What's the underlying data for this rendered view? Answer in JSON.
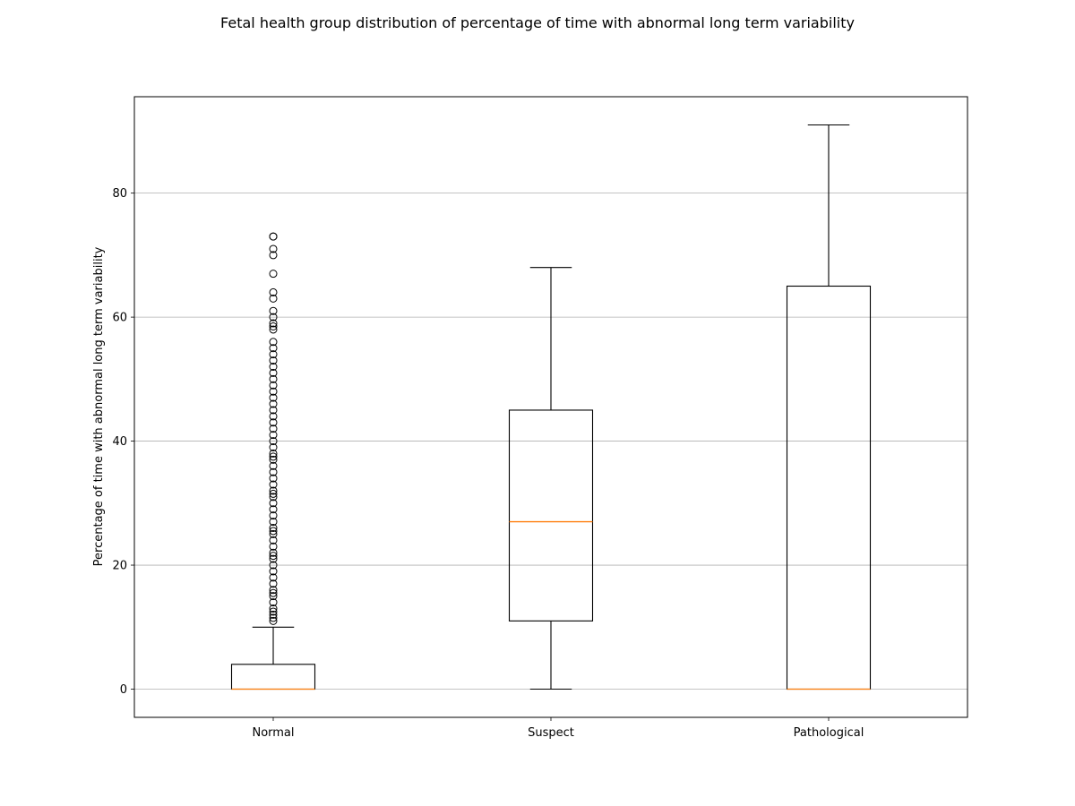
{
  "chart_data": {
    "type": "boxplot",
    "title": "Fetal health group distribution of percentage of time with abnormal long term variability",
    "xlabel": "",
    "ylabel": "Percentage of time with abnormal long term variability",
    "ylim": [
      -4.55,
      95.55
    ],
    "yticks": [
      0,
      20,
      40,
      60,
      80
    ],
    "grid": "y",
    "categories": [
      "Normal",
      "Suspect",
      "Pathological"
    ],
    "boxes": [
      {
        "name": "Normal",
        "whisker_low": 0,
        "q1": 0,
        "median": 0,
        "q3": 4,
        "whisker_high": 10,
        "outliers": [
          11,
          11.5,
          12,
          12.5,
          13,
          14,
          15,
          15.5,
          16,
          17,
          18,
          19,
          20,
          21,
          21.5,
          22,
          23,
          24,
          25,
          25.5,
          26,
          27,
          28,
          29,
          30,
          31,
          31.5,
          32,
          33,
          34,
          35,
          36,
          37,
          37.5,
          38,
          39,
          40,
          41,
          42,
          43,
          44,
          45,
          46,
          47,
          48,
          49,
          50,
          51,
          52,
          53,
          54,
          55,
          56,
          58,
          58.5,
          59,
          60,
          61,
          63,
          64,
          67,
          70,
          71,
          73,
          73
        ]
      },
      {
        "name": "Suspect",
        "whisker_low": 0,
        "q1": 11,
        "median": 27,
        "q3": 45,
        "whisker_high": 68,
        "outliers": []
      },
      {
        "name": "Pathological",
        "whisker_low": 0,
        "q1": 0,
        "median": 0,
        "q3": 65,
        "whisker_high": 91,
        "outliers": []
      }
    ],
    "colors": {
      "box": "#000000",
      "median": "#ff7f0e",
      "grid": "#b0b0b0"
    }
  }
}
